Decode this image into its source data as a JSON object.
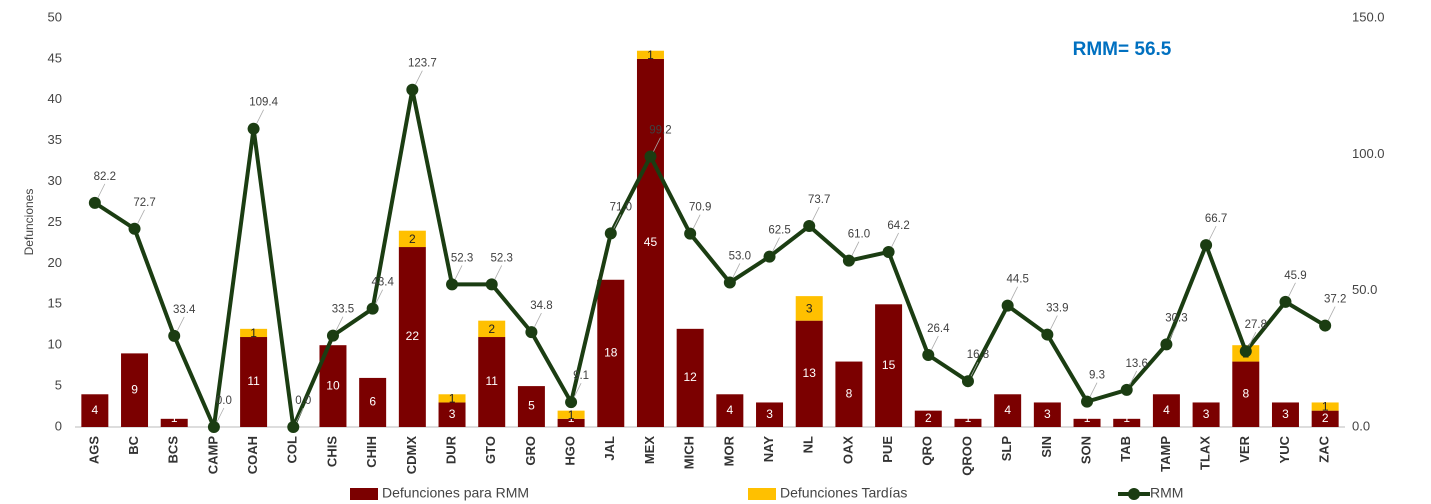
{
  "chart_data": {
    "type": "bar",
    "stacked": true,
    "y_label": "Defunciones",
    "annotation": "RMM= 56.5",
    "categories": [
      "AGS",
      "BC",
      "BCS",
      "CAMP",
      "COAH",
      "COL",
      "CHIS",
      "CHIH",
      "CDMX",
      "DUR",
      "GTO",
      "GRO",
      "HGO",
      "JAL",
      "MEX",
      "MICH",
      "MOR",
      "NAY",
      "NL",
      "OAX",
      "PUE",
      "QRO",
      "QROO",
      "SLP",
      "SIN",
      "SON",
      "TAB",
      "TAMP",
      "TLAX",
      "VER",
      "YUC",
      "ZAC"
    ],
    "series": [
      {
        "name": "Defunciones para RMM",
        "type": "bar",
        "color": "#7b0000",
        "values": [
          4,
          9,
          1,
          0,
          11,
          0,
          10,
          6,
          22,
          3,
          11,
          5,
          1,
          18,
          45,
          12,
          4,
          3,
          13,
          8,
          15,
          2,
          1,
          4,
          3,
          1,
          1,
          4,
          3,
          8,
          3,
          2
        ]
      },
      {
        "name": "Defunciones Tardías",
        "type": "bar",
        "color": "#ffc000",
        "values": [
          null,
          null,
          null,
          null,
          1,
          null,
          null,
          null,
          2,
          1,
          2,
          null,
          1,
          null,
          1,
          null,
          null,
          null,
          3,
          null,
          null,
          null,
          null,
          null,
          null,
          null,
          null,
          null,
          null,
          2,
          null,
          1
        ]
      },
      {
        "name": "RMM",
        "type": "line",
        "axis": "y2",
        "color": "#1b3d12",
        "values": [
          82.2,
          72.7,
          33.4,
          0,
          109.4,
          0,
          33.5,
          43.4,
          123.7,
          52.3,
          52.3,
          34.8,
          9.1,
          71,
          99.2,
          70.9,
          53,
          62.5,
          73.7,
          61,
          64.2,
          26.4,
          16.8,
          44.5,
          33.9,
          9.3,
          13.6,
          30.3,
          66.7,
          27.8,
          45.9,
          37.2
        ],
        "value_labels": [
          "82.2",
          "72.7",
          "33.4",
          "0.0",
          "109.4",
          "0.0",
          "33.5",
          "43.4",
          "123.7",
          "52.3",
          "52.3",
          "34.8",
          "9.1",
          "71.0",
          "99.2",
          "70.9",
          "53.0",
          "62.5",
          "73.7",
          "61.0",
          "64.2",
          "26.4",
          "16.8",
          "44.5",
          "33.9",
          "9.3",
          "13.6",
          "30.3",
          "66.7",
          "27.8",
          "45.9",
          "37.2"
        ]
      }
    ],
    "ylim": [
      0,
      50
    ],
    "yticks": [
      0,
      5,
      10,
      15,
      20,
      25,
      30,
      35,
      40,
      45,
      50
    ],
    "y2lim": [
      0,
      150
    ],
    "y2ticks": [
      {
        "value": 0,
        "label": "0.0"
      },
      {
        "value": 50,
        "label": "50.0"
      },
      {
        "value": 100,
        "label": "100.0"
      },
      {
        "value": 150,
        "label": "150.0"
      }
    ],
    "grid": false,
    "legend": "bottom"
  }
}
